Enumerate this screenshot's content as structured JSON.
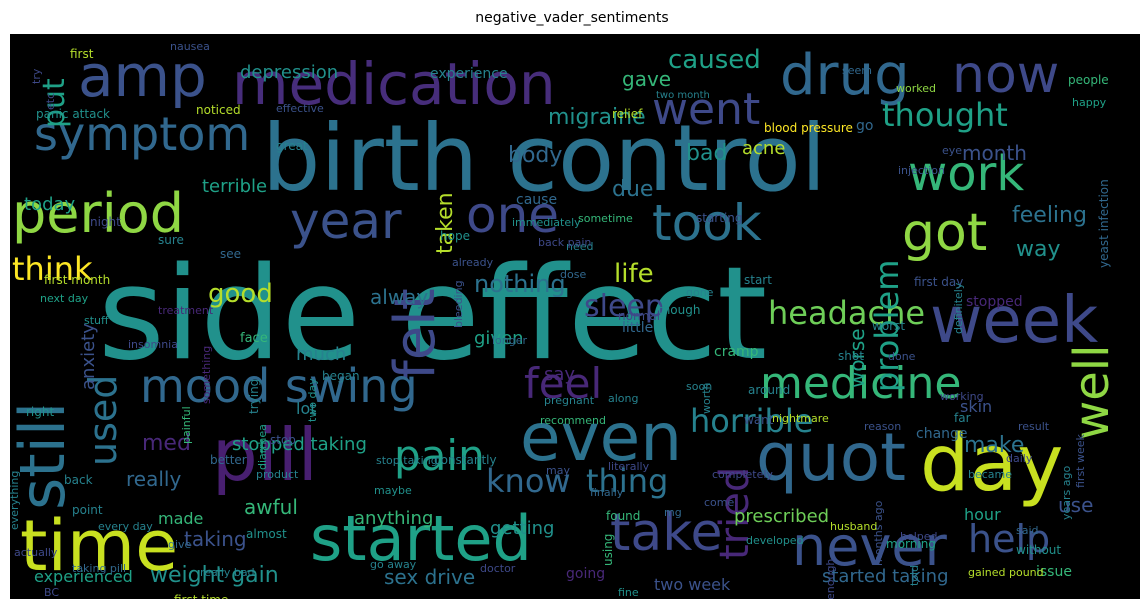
{
  "title": "negative_vader_sentiments",
  "palette": [
    "#440154",
    "#482878",
    "#3e4989",
    "#31688e",
    "#26828e",
    "#1f9e89",
    "#35b779",
    "#6ece58",
    "#b5de2b",
    "#fde725"
  ],
  "words": [
    {
      "text": "side effect",
      "size": 128,
      "color": "#21918c"
    },
    {
      "text": "birth control",
      "size": 92,
      "color": "#2c728e"
    },
    {
      "text": "amp",
      "size": 58,
      "color": "#3b528b"
    },
    {
      "text": "medication",
      "size": 58,
      "color": "#472d7b"
    },
    {
      "text": "drug",
      "size": 56,
      "color": "#31688e"
    },
    {
      "text": "now",
      "size": 52,
      "color": "#3e4989"
    },
    {
      "text": "period",
      "size": 54,
      "color": "#8fd744"
    },
    {
      "text": "symptom",
      "size": 46,
      "color": "#31688e"
    },
    {
      "text": "work",
      "size": 48,
      "color": "#35b779"
    },
    {
      "text": "year",
      "size": 50,
      "color": "#3b528b"
    },
    {
      "text": "one",
      "size": 50,
      "color": "#3e4989"
    },
    {
      "text": "took",
      "size": 50,
      "color": "#2c728e"
    },
    {
      "text": "got",
      "size": 52,
      "color": "#8fd744"
    },
    {
      "text": "went",
      "size": 44,
      "color": "#3e4989"
    },
    {
      "text": "week",
      "size": 64,
      "color": "#3e4989"
    },
    {
      "text": "day",
      "size": 78,
      "color": "#c8e020"
    },
    {
      "text": "quot",
      "size": 66,
      "color": "#31688e"
    },
    {
      "text": "even",
      "size": 66,
      "color": "#2c728e"
    },
    {
      "text": "pill",
      "size": 72,
      "color": "#481f70"
    },
    {
      "text": "time",
      "size": 70,
      "color": "#c8e020"
    },
    {
      "text": "started",
      "size": 62,
      "color": "#1fa187"
    },
    {
      "text": "take",
      "size": 52,
      "color": "#3e4989"
    },
    {
      "text": "never",
      "size": 54,
      "color": "#3b528b"
    },
    {
      "text": "still",
      "size": 62,
      "color": "#2c728e"
    },
    {
      "text": "felt",
      "size": 56,
      "color": "#3e4989"
    },
    {
      "text": "mood swing",
      "size": 46,
      "color": "#31688e"
    },
    {
      "text": "medicine",
      "size": 44,
      "color": "#35b779"
    },
    {
      "text": "feel",
      "size": 42,
      "color": "#482878"
    },
    {
      "text": "well",
      "size": 48,
      "color": "#8fd744"
    },
    {
      "text": "pain",
      "size": 42,
      "color": "#1fa187"
    },
    {
      "text": "know",
      "size": 32,
      "color": "#31688e"
    },
    {
      "text": "thing",
      "size": 32,
      "color": "#2c728e"
    },
    {
      "text": "tried",
      "size": 40,
      "color": "#482878"
    },
    {
      "text": "help",
      "size": 38,
      "color": "#3b528b"
    },
    {
      "text": "headache",
      "size": 32,
      "color": "#6ece58"
    },
    {
      "text": "horrible",
      "size": 32,
      "color": "#26828e"
    },
    {
      "text": "think",
      "size": 32,
      "color": "#fde725"
    },
    {
      "text": "life",
      "size": 26,
      "color": "#b5de2b"
    },
    {
      "text": "thought",
      "size": 32,
      "color": "#1fa187"
    },
    {
      "text": "caused",
      "size": 26,
      "color": "#1fa187"
    },
    {
      "text": "used",
      "size": 38,
      "color": "#2c728e"
    },
    {
      "text": "sleep",
      "size": 30,
      "color": "#3e4989"
    },
    {
      "text": "problem",
      "size": 32,
      "color": "#1fa187"
    },
    {
      "text": "good",
      "size": 26,
      "color": "#b5de2b"
    },
    {
      "text": "nothing",
      "size": 24,
      "color": "#2c728e"
    },
    {
      "text": "feeling",
      "size": 22,
      "color": "#2c728e"
    },
    {
      "text": "migraine",
      "size": 22,
      "color": "#21918c"
    },
    {
      "text": "body",
      "size": 22,
      "color": "#31688e"
    },
    {
      "text": "bad",
      "size": 22,
      "color": "#21918c"
    },
    {
      "text": "acne",
      "size": 18,
      "color": "#b5de2b"
    },
    {
      "text": "put",
      "size": 30,
      "color": "#1fa187"
    },
    {
      "text": "due",
      "size": 22,
      "color": "#2c728e"
    },
    {
      "text": "month",
      "size": 20,
      "color": "#3b528b"
    },
    {
      "text": "way",
      "size": 22,
      "color": "#21918c"
    },
    {
      "text": "alway",
      "size": 20,
      "color": "#2c728e"
    },
    {
      "text": "taken",
      "size": 22,
      "color": "#b5de2b"
    },
    {
      "text": "given",
      "size": 18,
      "color": "#1fa187"
    },
    {
      "text": "today",
      "size": 18,
      "color": "#1fa187"
    },
    {
      "text": "terrible",
      "size": 18,
      "color": "#1fa187"
    },
    {
      "text": "depression",
      "size": 18,
      "color": "#21918c"
    },
    {
      "text": "experience",
      "size": 14,
      "color": "#26828e"
    },
    {
      "text": "gave",
      "size": 20,
      "color": "#35b779"
    },
    {
      "text": "worse",
      "size": 20,
      "color": "#1fa187"
    },
    {
      "text": "anxiety",
      "size": 18,
      "color": "#3b528b"
    },
    {
      "text": "say",
      "size": 18,
      "color": "#482878"
    },
    {
      "text": "much",
      "size": 18,
      "color": "#26828e"
    },
    {
      "text": "make",
      "size": 22,
      "color": "#2c728e"
    },
    {
      "text": "stopped taking",
      "size": 18,
      "color": "#1fa187"
    },
    {
      "text": "med",
      "size": 22,
      "color": "#482878"
    },
    {
      "text": "really",
      "size": 20,
      "color": "#31688e"
    },
    {
      "text": "lot",
      "size": 16,
      "color": "#26828e"
    },
    {
      "text": "made",
      "size": 16,
      "color": "#35b779"
    },
    {
      "text": "awful",
      "size": 20,
      "color": "#35b779"
    },
    {
      "text": "anything",
      "size": 18,
      "color": "#35b779"
    },
    {
      "text": "getting",
      "size": 18,
      "color": "#21918c"
    },
    {
      "text": "prescribed",
      "size": 18,
      "color": "#6ece58"
    },
    {
      "text": "taking",
      "size": 20,
      "color": "#3b528b"
    },
    {
      "text": "weight gain",
      "size": 22,
      "color": "#21918c"
    },
    {
      "text": "sex drive",
      "size": 20,
      "color": "#2c728e"
    },
    {
      "text": "experienced",
      "size": 16,
      "color": "#1fa187"
    },
    {
      "text": "started taking",
      "size": 18,
      "color": "#31688e"
    },
    {
      "text": "two week",
      "size": 16,
      "color": "#3b528b"
    },
    {
      "text": "use",
      "size": 20,
      "color": "#3b528b"
    },
    {
      "text": "issue",
      "size": 14,
      "color": "#35b779"
    },
    {
      "text": "hour",
      "size": 16,
      "color": "#1fa187"
    },
    {
      "text": "skin",
      "size": 16,
      "color": "#3b528b"
    },
    {
      "text": "change",
      "size": 14,
      "color": "#31688e"
    },
    {
      "text": "going",
      "size": 14,
      "color": "#482878"
    },
    {
      "text": "blood pressure",
      "size": 12,
      "color": "#fde725"
    },
    {
      "text": "stopped",
      "size": 14,
      "color": "#482878"
    },
    {
      "text": "first day",
      "size": 12,
      "color": "#3b528b"
    },
    {
      "text": "little",
      "size": 14,
      "color": "#31688e"
    },
    {
      "text": "cramp",
      "size": 14,
      "color": "#35b779"
    },
    {
      "text": "cause",
      "size": 14,
      "color": "#31688e"
    },
    {
      "text": "start",
      "size": 12,
      "color": "#26828e"
    },
    {
      "text": "notice",
      "size": 12,
      "color": "#b5de2b"
    },
    {
      "text": "noticed",
      "size": 12,
      "color": "#b5de2b"
    },
    {
      "text": "effective",
      "size": 11,
      "color": "#3b528b"
    },
    {
      "text": "great",
      "size": 12,
      "color": "#26828e"
    },
    {
      "text": "immediately",
      "size": 11,
      "color": "#21918c"
    },
    {
      "text": "starting",
      "size": 12,
      "color": "#3b528b"
    },
    {
      "text": "gone",
      "size": 11,
      "color": "#26828e"
    },
    {
      "text": "go",
      "size": 14,
      "color": "#31688e"
    },
    {
      "text": "injection",
      "size": 11,
      "color": "#3b528b"
    },
    {
      "text": "eye",
      "size": 11,
      "color": "#3b528b"
    },
    {
      "text": "yeast infection",
      "size": 12,
      "color": "#31688e"
    },
    {
      "text": "people",
      "size": 12,
      "color": "#35b779"
    },
    {
      "text": "happy",
      "size": 11,
      "color": "#1fa187"
    },
    {
      "text": "relief",
      "size": 12,
      "color": "#b5de2b"
    },
    {
      "text": "first",
      "size": 12,
      "color": "#b5de2b"
    },
    {
      "text": "nausea",
      "size": 11,
      "color": "#3b528b"
    },
    {
      "text": "try",
      "size": 11,
      "color": "#3e4989"
    },
    {
      "text": "etc",
      "size": 11,
      "color": "#3e4989"
    },
    {
      "text": "panic attack",
      "size": 12,
      "color": "#21918c"
    },
    {
      "text": "two month",
      "size": 10,
      "color": "#26828e"
    },
    {
      "text": "seem",
      "size": 11,
      "color": "#31688e"
    },
    {
      "text": "worked",
      "size": 11,
      "color": "#8fd744"
    },
    {
      "text": "hope",
      "size": 12,
      "color": "#21918c"
    },
    {
      "text": "already",
      "size": 11,
      "color": "#3b528b"
    },
    {
      "text": "dose",
      "size": 11,
      "color": "#31688e"
    },
    {
      "text": "need",
      "size": 11,
      "color": "#26828e"
    },
    {
      "text": "sometime",
      "size": 11,
      "color": "#35b779"
    },
    {
      "text": "though",
      "size": 12,
      "color": "#21918c"
    },
    {
      "text": "normal",
      "size": 12,
      "color": "#3e4989"
    },
    {
      "text": "back pain",
      "size": 11,
      "color": "#3e4989"
    },
    {
      "text": "worst",
      "size": 12,
      "color": "#26828e"
    },
    {
      "text": "done",
      "size": 11,
      "color": "#3b528b"
    },
    {
      "text": "definitely",
      "size": 11,
      "color": "#26828e"
    },
    {
      "text": "shot",
      "size": 12,
      "color": "#26828e"
    },
    {
      "text": "first month",
      "size": 12,
      "color": "#b5de2b"
    },
    {
      "text": "night",
      "size": 12,
      "color": "#3e4989"
    },
    {
      "text": "see",
      "size": 12,
      "color": "#31688e"
    },
    {
      "text": "sure",
      "size": 12,
      "color": "#26828e"
    },
    {
      "text": "next day",
      "size": 11,
      "color": "#1fa187"
    },
    {
      "text": "treatment",
      "size": 11,
      "color": "#482878"
    },
    {
      "text": "bleeding",
      "size": 11,
      "color": "#3b528b"
    },
    {
      "text": "longer",
      "size": 11,
      "color": "#31688e"
    },
    {
      "text": "working",
      "size": 11,
      "color": "#3e4989"
    },
    {
      "text": "stuff",
      "size": 11,
      "color": "#21918c"
    },
    {
      "text": "insomnia",
      "size": 11,
      "color": "#3e4989"
    },
    {
      "text": "face",
      "size": 13,
      "color": "#35b779"
    },
    {
      "text": "began",
      "size": 12,
      "color": "#26828e"
    },
    {
      "text": "stop",
      "size": 12,
      "color": "#3b528b"
    },
    {
      "text": "recommend",
      "size": 11,
      "color": "#35b779"
    },
    {
      "text": "along",
      "size": 11,
      "color": "#26828e"
    },
    {
      "text": "around",
      "size": 12,
      "color": "#26828e"
    },
    {
      "text": "far",
      "size": 12,
      "color": "#26828e"
    },
    {
      "text": "result",
      "size": 11,
      "color": "#3b528b"
    },
    {
      "text": "worth",
      "size": 11,
      "color": "#26828e"
    },
    {
      "text": "something",
      "size": 11,
      "color": "#482878"
    },
    {
      "text": "trying",
      "size": 12,
      "color": "#26828e"
    },
    {
      "text": "two day",
      "size": 11,
      "color": "#21918c"
    },
    {
      "text": "pregnant",
      "size": 11,
      "color": "#26828e"
    },
    {
      "text": "soon",
      "size": 11,
      "color": "#26828e"
    },
    {
      "text": "want",
      "size": 12,
      "color": "#3b528b"
    },
    {
      "text": "nightmare",
      "size": 11,
      "color": "#b5de2b"
    },
    {
      "text": "reason",
      "size": 11,
      "color": "#3b528b"
    },
    {
      "text": "right",
      "size": 12,
      "color": "#21918c"
    },
    {
      "text": "painful",
      "size": 11,
      "color": "#35b779"
    },
    {
      "text": "diarrhea",
      "size": 11,
      "color": "#1fa187"
    },
    {
      "text": "stop taking",
      "size": 11,
      "color": "#26828e"
    },
    {
      "text": "daily",
      "size": 11,
      "color": "#3e4989"
    },
    {
      "text": "first week",
      "size": 11,
      "color": "#3b528b"
    },
    {
      "text": "better",
      "size": 12,
      "color": "#31688e"
    },
    {
      "text": "product",
      "size": 11,
      "color": "#26828e"
    },
    {
      "text": "constantly",
      "size": 12,
      "color": "#26828e"
    },
    {
      "text": "may",
      "size": 11,
      "color": "#3b528b"
    },
    {
      "text": "literally",
      "size": 11,
      "color": "#3e4989"
    },
    {
      "text": "completely",
      "size": 11,
      "color": "#3e4989"
    },
    {
      "text": "back",
      "size": 12,
      "color": "#26828e"
    },
    {
      "text": "maybe",
      "size": 11,
      "color": "#21918c"
    },
    {
      "text": "finally",
      "size": 11,
      "color": "#31688e"
    },
    {
      "text": "became",
      "size": 11,
      "color": "#26828e"
    },
    {
      "text": "found",
      "size": 12,
      "color": "#35b779"
    },
    {
      "text": "point",
      "size": 12,
      "color": "#26828e"
    },
    {
      "text": "everything",
      "size": 11,
      "color": "#26828e"
    },
    {
      "text": "every day",
      "size": 11,
      "color": "#26828e"
    },
    {
      "text": "come",
      "size": 11,
      "color": "#3b528b"
    },
    {
      "text": "mg",
      "size": 11,
      "color": "#31688e"
    },
    {
      "text": "developed",
      "size": 11,
      "color": "#21918c"
    },
    {
      "text": "husband",
      "size": 11,
      "color": "#b5de2b"
    },
    {
      "text": "helped",
      "size": 11,
      "color": "#3e4989"
    },
    {
      "text": "years ago",
      "size": 11,
      "color": "#26828e"
    },
    {
      "text": "almost",
      "size": 12,
      "color": "#21918c"
    },
    {
      "text": "give",
      "size": 11,
      "color": "#31688e"
    },
    {
      "text": "morning",
      "size": 12,
      "color": "#1fa187"
    },
    {
      "text": "said",
      "size": 11,
      "color": "#31688e"
    },
    {
      "text": "without",
      "size": 12,
      "color": "#21918c"
    },
    {
      "text": "actually",
      "size": 11,
      "color": "#3e4989"
    },
    {
      "text": "really bad",
      "size": 11,
      "color": "#26828e"
    },
    {
      "text": "go away",
      "size": 11,
      "color": "#26828e"
    },
    {
      "text": "using",
      "size": 12,
      "color": "#35b779"
    },
    {
      "text": "months ago",
      "size": 11,
      "color": "#3b528b"
    },
    {
      "text": "gained pound",
      "size": 11,
      "color": "#b5de2b"
    },
    {
      "text": "taking pill",
      "size": 11,
      "color": "#31688e"
    },
    {
      "text": "doctor",
      "size": 11,
      "color": "#3e4989"
    },
    {
      "text": "fine",
      "size": 11,
      "color": "#21918c"
    },
    {
      "text": "told",
      "size": 11,
      "color": "#26828e"
    },
    {
      "text": "BC",
      "size": 11,
      "color": "#3e4989"
    },
    {
      "text": "first time",
      "size": 12,
      "color": "#b5de2b"
    },
    {
      "text": "enough",
      "size": 11,
      "color": "#3e4989"
    }
  ]
}
